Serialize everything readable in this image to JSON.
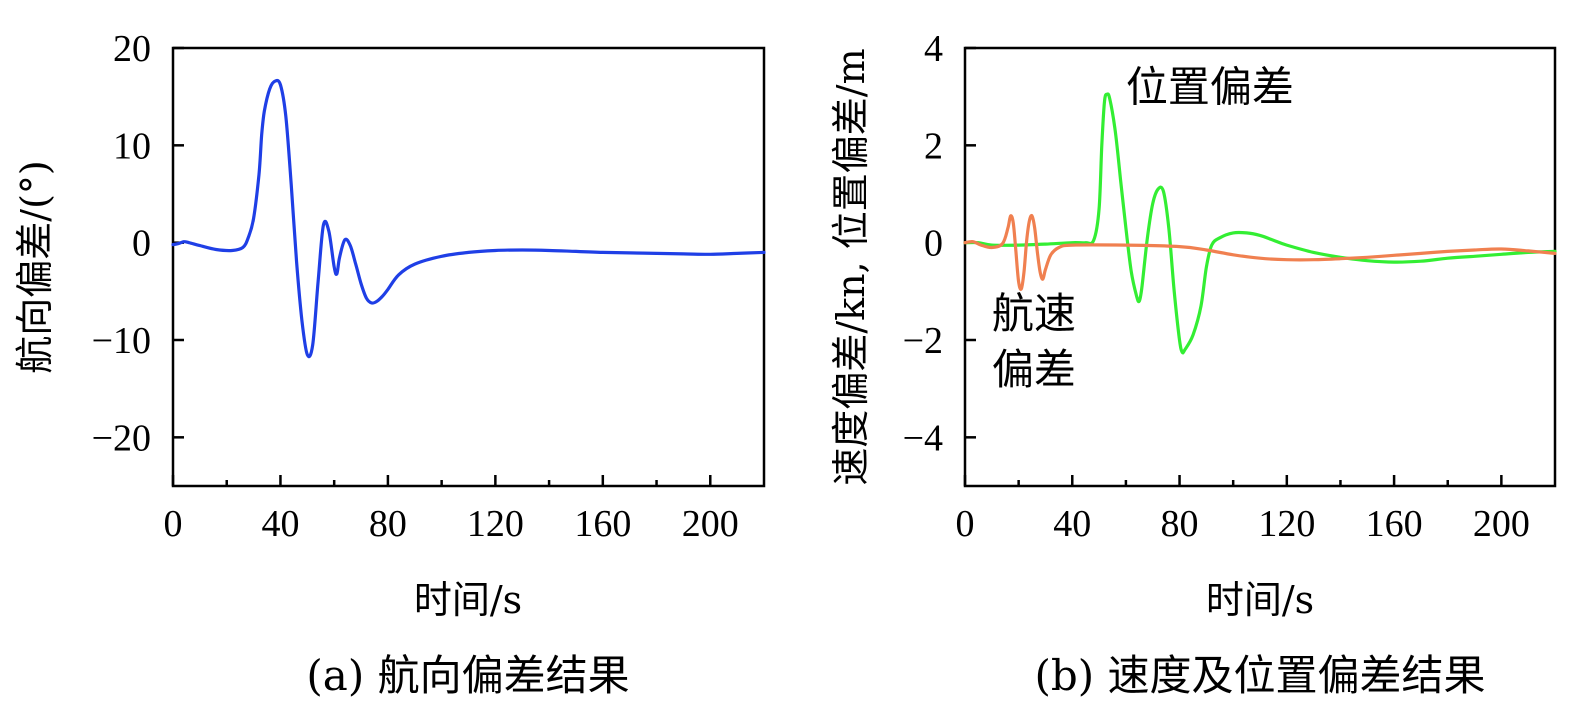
{
  "chart_data": [
    {
      "type": "line",
      "caption": "(a) 航向偏差结果",
      "xlabel": "时间/s",
      "ylabel": "航向偏差/(°)",
      "xlim": [
        0,
        220
      ],
      "ylim": [
        -25,
        20
      ],
      "xticks": [
        0,
        40,
        80,
        120,
        160,
        200
      ],
      "xtick_labels": [
        "0",
        "40",
        "80",
        "120",
        "160",
        "200"
      ],
      "yticks": [
        20,
        10,
        0,
        -10,
        -20
      ],
      "ytick_labels": [
        "20",
        "10",
        "0",
        "−10",
        "−20"
      ],
      "series": [
        {
          "color": "#1f3fe6",
          "x": [
            0,
            2,
            4,
            6,
            10,
            16,
            22,
            26,
            28,
            30,
            32,
            33,
            34,
            36,
            38,
            40,
            42,
            44,
            46,
            48,
            50,
            52,
            54,
            56,
            58,
            60,
            61,
            62,
            64,
            66,
            68,
            70,
            72,
            74,
            76,
            78,
            80,
            84,
            90,
            100,
            110,
            120,
            130,
            140,
            150,
            160,
            170,
            180,
            190,
            200,
            210,
            220
          ],
          "y": [
            -0.2,
            -0.1,
            0.1,
            0.0,
            -0.3,
            -0.7,
            -0.8,
            -0.5,
            0.5,
            2.5,
            7.0,
            11.0,
            13.5,
            15.8,
            16.6,
            16.2,
            13.0,
            6.0,
            -2.0,
            -8.0,
            -11.5,
            -10.5,
            -4.0,
            1.8,
            1.2,
            -2.5,
            -3.2,
            -1.5,
            0.3,
            -0.3,
            -2.2,
            -4.2,
            -5.7,
            -6.2,
            -6.0,
            -5.5,
            -4.8,
            -3.3,
            -2.2,
            -1.4,
            -1.0,
            -0.8,
            -0.75,
            -0.8,
            -0.9,
            -1.0,
            -1.05,
            -1.1,
            -1.15,
            -1.2,
            -1.1,
            -1.0
          ]
        }
      ]
    },
    {
      "type": "line",
      "caption": "(b) 速度及位置偏差结果",
      "xlabel": "时间/s",
      "ylabel": "速度偏差/kn, 位置偏差/m",
      "xlim": [
        0,
        220
      ],
      "ylim": [
        -5,
        4
      ],
      "xticks": [
        0,
        40,
        80,
        120,
        160,
        200
      ],
      "xtick_labels": [
        "0",
        "40",
        "80",
        "120",
        "160",
        "200"
      ],
      "yticks": [
        4,
        2,
        0,
        -2,
        -4
      ],
      "ytick_labels": [
        "4",
        "2",
        "0",
        "−2",
        "−4"
      ],
      "annotations": [
        {
          "text": "位置偏差",
          "x": 60,
          "y": 2.9
        },
        {
          "text": "航速",
          "x": 10,
          "y": -1.75
        },
        {
          "text": "偏差",
          "x": 10,
          "y": -2.9
        }
      ],
      "series": [
        {
          "color": "#33ee33",
          "x": [
            0,
            5,
            10,
            20,
            30,
            40,
            45,
            48,
            50,
            51,
            52,
            53,
            54,
            56,
            58,
            60,
            62,
            64,
            65,
            66,
            68,
            70,
            72,
            74,
            76,
            78,
            80,
            81,
            82,
            85,
            88,
            90,
            92,
            95,
            100,
            105,
            110,
            115,
            120,
            130,
            140,
            150,
            160,
            170,
            180,
            190,
            200,
            210,
            220
          ],
          "y": [
            0.0,
            0.0,
            -0.05,
            -0.05,
            -0.03,
            0.0,
            0.0,
            0.05,
            0.7,
            2.0,
            2.9,
            3.05,
            2.95,
            2.3,
            1.3,
            0.3,
            -0.6,
            -1.1,
            -1.2,
            -0.9,
            0.1,
            0.8,
            1.1,
            1.05,
            0.3,
            -1.0,
            -2.0,
            -2.25,
            -2.2,
            -1.9,
            -1.3,
            -0.5,
            -0.05,
            0.1,
            0.2,
            0.2,
            0.15,
            0.05,
            -0.05,
            -0.2,
            -0.3,
            -0.37,
            -0.4,
            -0.38,
            -0.32,
            -0.28,
            -0.24,
            -0.2,
            -0.18
          ]
        },
        {
          "color": "#f08050",
          "x": [
            0,
            3,
            6,
            10,
            14,
            16,
            17,
            18,
            19,
            20,
            21,
            22,
            23,
            24,
            25,
            26,
            27,
            28,
            29,
            30,
            32,
            35,
            40,
            60,
            80,
            90,
            100,
            110,
            120,
            130,
            140,
            150,
            160,
            170,
            180,
            190,
            200,
            210,
            220
          ],
          "y": [
            0.0,
            0.02,
            -0.05,
            -0.1,
            -0.02,
            0.3,
            0.55,
            0.4,
            -0.2,
            -0.8,
            -0.95,
            -0.6,
            0.05,
            0.45,
            0.55,
            0.3,
            -0.2,
            -0.6,
            -0.75,
            -0.55,
            -0.25,
            -0.1,
            -0.05,
            -0.05,
            -0.08,
            -0.15,
            -0.25,
            -0.32,
            -0.35,
            -0.35,
            -0.33,
            -0.3,
            -0.26,
            -0.22,
            -0.18,
            -0.15,
            -0.13,
            -0.17,
            -0.22
          ]
        }
      ]
    }
  ]
}
